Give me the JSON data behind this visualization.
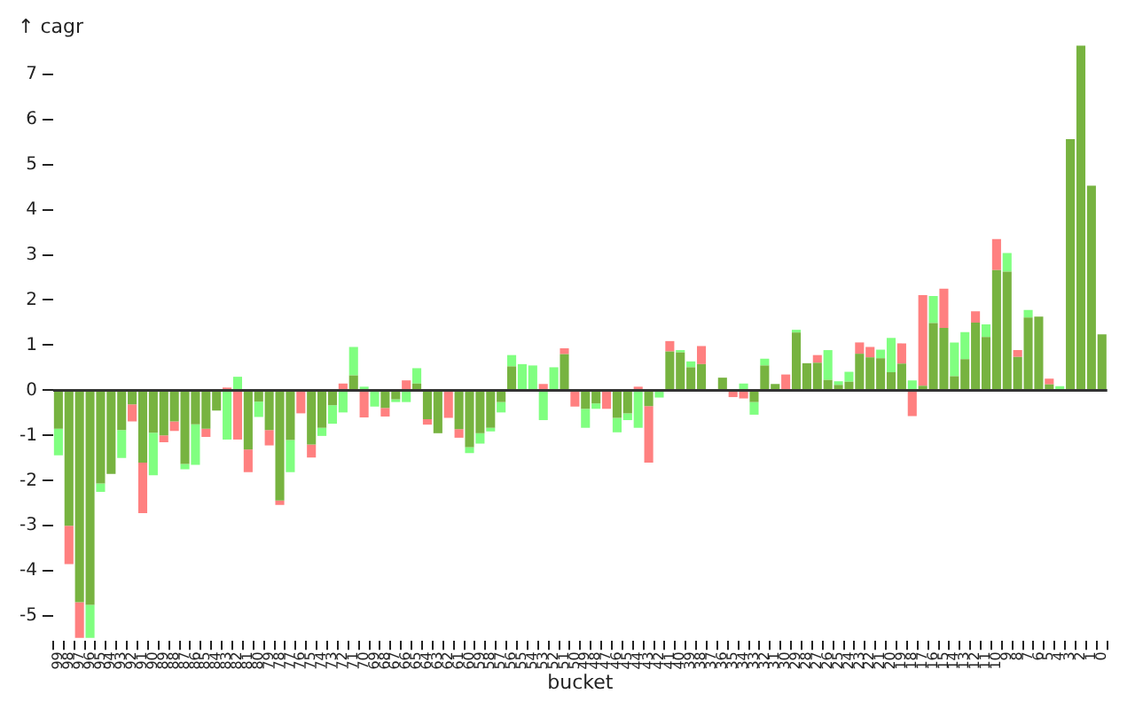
{
  "chart_data": {
    "type": "bar",
    "ylabel": "↑ cagr",
    "xlabel": "bucket",
    "categories": [
      "99",
      "98",
      "97",
      "96",
      "95",
      "94",
      "93",
      "92",
      "91",
      "90",
      "89",
      "88",
      "87",
      "86",
      "85",
      "84",
      "83",
      "82",
      "81",
      "80",
      "79",
      "78",
      "77",
      "76",
      "75",
      "74",
      "73",
      "72",
      "71",
      "70",
      "69",
      "68",
      "67",
      "66",
      "65",
      "64",
      "63",
      "62",
      "61",
      "60",
      "59",
      "58",
      "57",
      "56",
      "55",
      "54",
      "53",
      "52",
      "51",
      "50",
      "49",
      "48",
      "47",
      "46",
      "45",
      "44",
      "43",
      "42",
      "41",
      "40",
      "39",
      "38",
      "37",
      "36",
      "35",
      "34",
      "33",
      "32",
      "31",
      "30",
      "29",
      "28",
      "27",
      "26",
      "25",
      "24",
      "23",
      "22",
      "21",
      "20",
      "19",
      "18",
      "17",
      "16",
      "15",
      "14",
      "13",
      "12",
      "11",
      "10",
      "9",
      "8",
      "7",
      "6",
      "5",
      "4",
      "3",
      "2",
      "1",
      "0"
    ],
    "series": [
      {
        "color": "#77b340",
        "values": [
          -0.85,
          -3.0,
          -4.69,
          -4.75,
          -2.06,
          -1.85,
          -0.88,
          -0.31,
          -1.6,
          -0.94,
          -1.0,
          -0.69,
          -1.63,
          -0.75,
          -0.85,
          -0.45,
          null,
          null,
          -1.31,
          -0.25,
          -0.88,
          -2.44,
          -1.1,
          null,
          -1.2,
          -0.83,
          -0.33,
          null,
          0.33,
          null,
          null,
          -0.39,
          -0.2,
          null,
          0.15,
          -0.64,
          -0.95,
          null,
          -0.86,
          -1.26,
          -0.95,
          -0.83,
          -0.26,
          0.53,
          null,
          null,
          null,
          null,
          0.8,
          null,
          -0.41,
          -0.29,
          null,
          -0.61,
          -0.51,
          null,
          -0.35,
          null,
          0.86,
          0.84,
          0.51,
          0.58,
          null,
          0.28,
          null,
          null,
          -0.26,
          0.55,
          0.14,
          null,
          1.28,
          0.6,
          0.61,
          0.23,
          0.12,
          0.19,
          0.81,
          0.73,
          0.71,
          0.4,
          0.59,
          null,
          0.1,
          1.49,
          1.38,
          0.31,
          0.69,
          1.5,
          1.18,
          2.66,
          2.63,
          0.74,
          1.61,
          1.63,
          0.13,
          null,
          5.56,
          7.63,
          4.53,
          1.24
        ]
      },
      {
        "color": "#80ff80",
        "values": [
          -0.59,
          null,
          null,
          -0.73,
          -0.19,
          null,
          -0.62,
          null,
          null,
          -0.94,
          null,
          null,
          -0.12,
          -0.9,
          null,
          null,
          -1.09,
          0.3,
          null,
          -0.34,
          null,
          null,
          -0.71,
          null,
          null,
          -0.18,
          -0.41,
          -0.49,
          0.63,
          0.08,
          -0.36,
          null,
          -0.06,
          -0.26,
          0.34,
          null,
          null,
          null,
          null,
          -0.13,
          -0.23,
          -0.08,
          -0.23,
          0.25,
          0.58,
          0.55,
          -0.66,
          0.51,
          null,
          null,
          -0.42,
          -0.12,
          null,
          -0.32,
          -0.15,
          -0.83,
          null,
          -0.16,
          null,
          0.05,
          0.13,
          null,
          null,
          null,
          null,
          0.15,
          -0.28,
          0.15,
          null,
          null,
          0.06,
          null,
          null,
          0.66,
          0.08,
          0.22,
          null,
          null,
          0.19,
          0.76,
          null,
          0.22,
          null,
          0.6,
          null,
          0.75,
          0.6,
          null,
          0.28,
          null,
          0.41,
          null,
          0.17,
          null,
          null,
          0.09,
          null,
          null,
          null,
          null
        ]
      },
      {
        "color": "#ff8080",
        "values": [
          null,
          -0.85,
          -0.79,
          null,
          null,
          null,
          null,
          -0.38,
          -1.12,
          null,
          -0.15,
          -0.21,
          null,
          null,
          -0.18,
          null,
          0.06,
          -1.09,
          -0.5,
          null,
          -0.34,
          -0.1,
          null,
          -0.51,
          -0.29,
          null,
          null,
          0.15,
          null,
          -0.6,
          null,
          -0.19,
          null,
          0.22,
          null,
          -0.12,
          null,
          -0.61,
          -0.19,
          null,
          null,
          null,
          null,
          null,
          null,
          null,
          0.14,
          null,
          0.13,
          -0.36,
          null,
          null,
          -0.41,
          null,
          null,
          0.08,
          -1.25,
          null,
          0.23,
          null,
          null,
          0.4,
          null,
          null,
          -0.15,
          -0.18,
          null,
          null,
          null,
          0.35,
          null,
          null,
          0.17,
          null,
          null,
          null,
          0.25,
          0.23,
          null,
          null,
          0.45,
          -0.57,
          2.01,
          null,
          0.87,
          null,
          null,
          0.25,
          null,
          0.69,
          null,
          0.15,
          null,
          null,
          0.13,
          null,
          null,
          null,
          null,
          null
        ]
      }
    ],
    "stacked": true,
    "ylim": [
      -5.55,
      7.7
    ],
    "yticks": [
      -5,
      -4,
      -3,
      -2,
      -1,
      0,
      1,
      2,
      3,
      4,
      5,
      6,
      7
    ],
    "ref_lines": [
      {
        "axis": "y",
        "value": 0,
        "color": "#333333"
      }
    ],
    "grid": false,
    "legend": false
  }
}
